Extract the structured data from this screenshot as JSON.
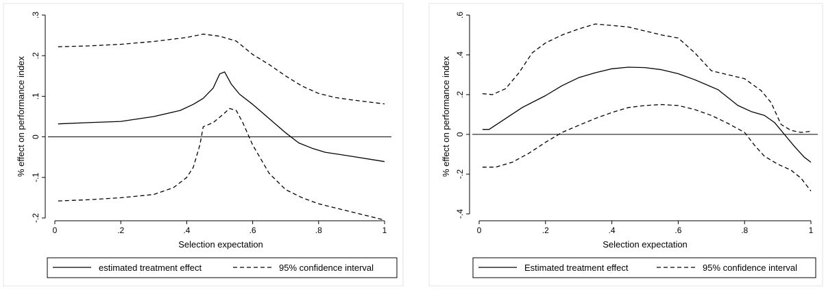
{
  "chart_data": [
    {
      "type": "line",
      "title": "",
      "xlabel": "Selection expectation",
      "ylabel": "% effect on performance index",
      "xlim": [
        0,
        1
      ],
      "ylim": [
        -0.2,
        0.3
      ],
      "xticks": [
        0,
        0.2,
        0.4,
        0.6,
        0.8,
        1
      ],
      "xtick_labels": [
        "0",
        ".2",
        ".4",
        ".6",
        ".8",
        "1"
      ],
      "yticks": [
        -0.2,
        -0.1,
        0,
        0.1,
        0.2,
        0.3
      ],
      "ytick_labels": [
        "-.2",
        "-.1",
        "0",
        ".1",
        ".2",
        ".3"
      ],
      "reference_line_y": 0,
      "grid": false,
      "legend_position": "bottom",
      "series": [
        {
          "name": "estimated treatment effect",
          "style": "solid",
          "x": [
            0.01,
            0.1,
            0.2,
            0.3,
            0.38,
            0.42,
            0.45,
            0.48,
            0.5,
            0.515,
            0.535,
            0.56,
            0.6,
            0.65,
            0.7,
            0.74,
            0.78,
            0.82,
            0.9,
            1.0
          ],
          "y": [
            0.032,
            0.035,
            0.038,
            0.05,
            0.065,
            0.08,
            0.095,
            0.12,
            0.155,
            0.16,
            0.13,
            0.105,
            0.08,
            0.045,
            0.01,
            -0.015,
            -0.028,
            -0.038,
            -0.048,
            -0.061
          ]
        },
        {
          "name": "95% confidence interval",
          "style": "dashed",
          "x": [
            0.01,
            0.1,
            0.2,
            0.3,
            0.4,
            0.45,
            0.5,
            0.55,
            0.6,
            0.65,
            0.7,
            0.75,
            0.8,
            0.85,
            0.9,
            1.0
          ],
          "y": [
            0.222,
            0.224,
            0.228,
            0.235,
            0.245,
            0.253,
            0.248,
            0.236,
            0.203,
            0.178,
            0.15,
            0.125,
            0.107,
            0.097,
            0.091,
            0.081
          ]
        },
        {
          "name": "95% confidence interval",
          "style": "dashed",
          "x": [
            0.01,
            0.1,
            0.2,
            0.3,
            0.36,
            0.4,
            0.42,
            0.44,
            0.45,
            0.48,
            0.51,
            0.53,
            0.55,
            0.57,
            0.6,
            0.65,
            0.7,
            0.75,
            0.8,
            0.9,
            1.0
          ],
          "y": [
            -0.158,
            -0.155,
            -0.15,
            -0.142,
            -0.125,
            -0.1,
            -0.075,
            -0.02,
            0.025,
            0.035,
            0.055,
            0.07,
            0.065,
            0.035,
            -0.02,
            -0.09,
            -0.13,
            -0.15,
            -0.165,
            -0.185,
            -0.205
          ]
        }
      ]
    },
    {
      "type": "line",
      "title": "",
      "xlabel": "Selection expectation",
      "ylabel": "% effect on performance index",
      "xlim": [
        0,
        1
      ],
      "ylim": [
        -0.4,
        0.6
      ],
      "xticks": [
        0,
        0.2,
        0.4,
        0.6,
        0.8,
        1
      ],
      "xtick_labels": [
        "0",
        ".2",
        ".4",
        ".6",
        ".8",
        "1"
      ],
      "yticks": [
        -0.4,
        -0.2,
        0,
        0.2,
        0.4,
        0.6
      ],
      "ytick_labels": [
        "-.4",
        "-.2",
        "0",
        ".2",
        ".4",
        ".6"
      ],
      "reference_line_y": 0,
      "grid": false,
      "legend_position": "bottom",
      "series": [
        {
          "name": "Estimated treatment effect",
          "style": "solid",
          "x": [
            0.01,
            0.03,
            0.08,
            0.13,
            0.2,
            0.25,
            0.3,
            0.35,
            0.4,
            0.45,
            0.5,
            0.55,
            0.6,
            0.65,
            0.72,
            0.78,
            0.82,
            0.86,
            0.89,
            0.92,
            0.95,
            0.98,
            1.0
          ],
          "y": [
            0.025,
            0.025,
            0.08,
            0.135,
            0.195,
            0.245,
            0.285,
            0.31,
            0.33,
            0.338,
            0.336,
            0.325,
            0.305,
            0.275,
            0.225,
            0.145,
            0.115,
            0.095,
            0.06,
            0.0,
            -0.06,
            -0.115,
            -0.14
          ]
        },
        {
          "name": "95% confidence interval",
          "style": "dashed",
          "x": [
            0.01,
            0.04,
            0.08,
            0.12,
            0.16,
            0.2,
            0.25,
            0.3,
            0.35,
            0.4,
            0.45,
            0.5,
            0.55,
            0.6,
            0.65,
            0.7,
            0.75,
            0.8,
            0.85,
            0.88,
            0.91,
            0.94,
            0.97,
            1.0
          ],
          "y": [
            0.205,
            0.2,
            0.23,
            0.31,
            0.41,
            0.46,
            0.5,
            0.53,
            0.555,
            0.548,
            0.54,
            0.52,
            0.5,
            0.485,
            0.41,
            0.32,
            0.3,
            0.28,
            0.22,
            0.16,
            0.05,
            0.02,
            0.01,
            0.015
          ]
        },
        {
          "name": "95% confidence interval",
          "style": "dashed",
          "x": [
            0.01,
            0.05,
            0.1,
            0.15,
            0.2,
            0.25,
            0.3,
            0.35,
            0.4,
            0.45,
            0.5,
            0.55,
            0.6,
            0.65,
            0.7,
            0.75,
            0.8,
            0.83,
            0.86,
            0.9,
            0.94,
            0.97,
            1.0
          ],
          "y": [
            -0.165,
            -0.165,
            -0.14,
            -0.095,
            -0.04,
            0.01,
            0.045,
            0.08,
            0.11,
            0.135,
            0.145,
            0.15,
            0.145,
            0.125,
            0.095,
            0.055,
            0.01,
            -0.055,
            -0.11,
            -0.15,
            -0.18,
            -0.22,
            -0.285
          ]
        }
      ]
    }
  ],
  "panels": [
    {
      "legend": {
        "solid_label": "estimated treatment effect",
        "dashed_label": "95% confidence interval"
      }
    },
    {
      "legend": {
        "solid_label": "Estimated treatment effect",
        "dashed_label": "95% confidence interval"
      }
    }
  ]
}
